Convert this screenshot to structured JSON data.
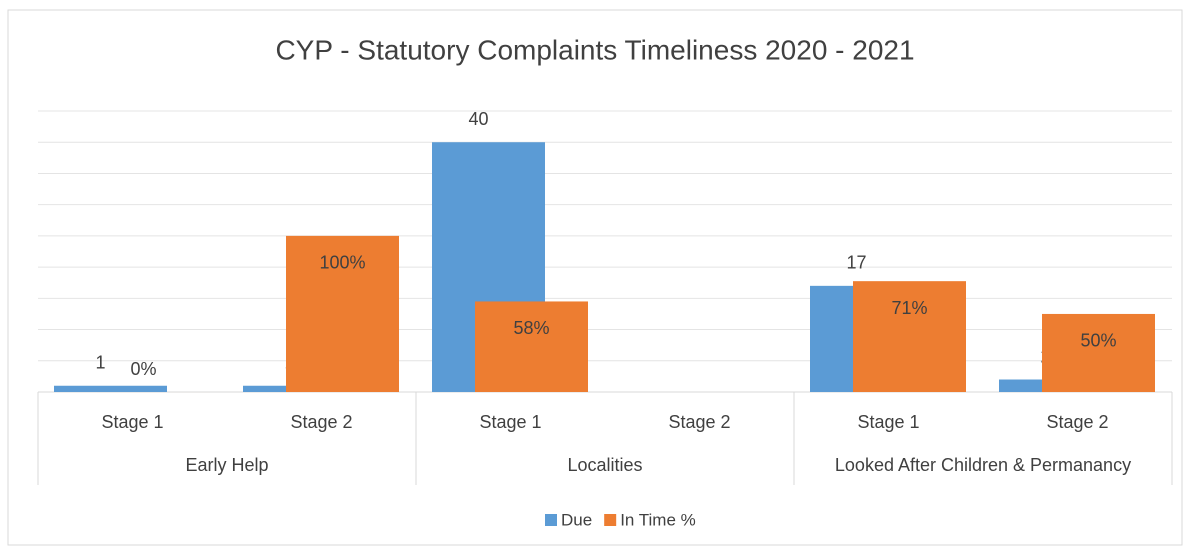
{
  "chart_data": {
    "type": "bar",
    "title": "CYP - Statutory Complaints Timeliness 2020 - 2021",
    "groups": [
      {
        "label": "Early Help",
        "categories": [
          "Stage 1",
          "Stage 2"
        ]
      },
      {
        "label": "Localities",
        "categories": [
          "Stage 1",
          "Stage 2"
        ]
      },
      {
        "label": "Looked After Children & Permanancy",
        "categories": [
          "Stage 1",
          "Stage 2"
        ]
      }
    ],
    "series": [
      {
        "name": "Due",
        "color": "#5b9bd5",
        "values": [
          1,
          1,
          40,
          null,
          17,
          2
        ]
      },
      {
        "name": "In Time %",
        "color": "#ed7d31",
        "axis": "y2",
        "values": [
          0,
          100,
          58,
          null,
          71,
          50
        ]
      }
    ],
    "ylim": [
      0,
      45
    ],
    "yticks": [
      0,
      5,
      10,
      15,
      20,
      25,
      30,
      35,
      40,
      45
    ],
    "y2lim": [
      0,
      180
    ],
    "grid": true,
    "legend": "bottom"
  }
}
